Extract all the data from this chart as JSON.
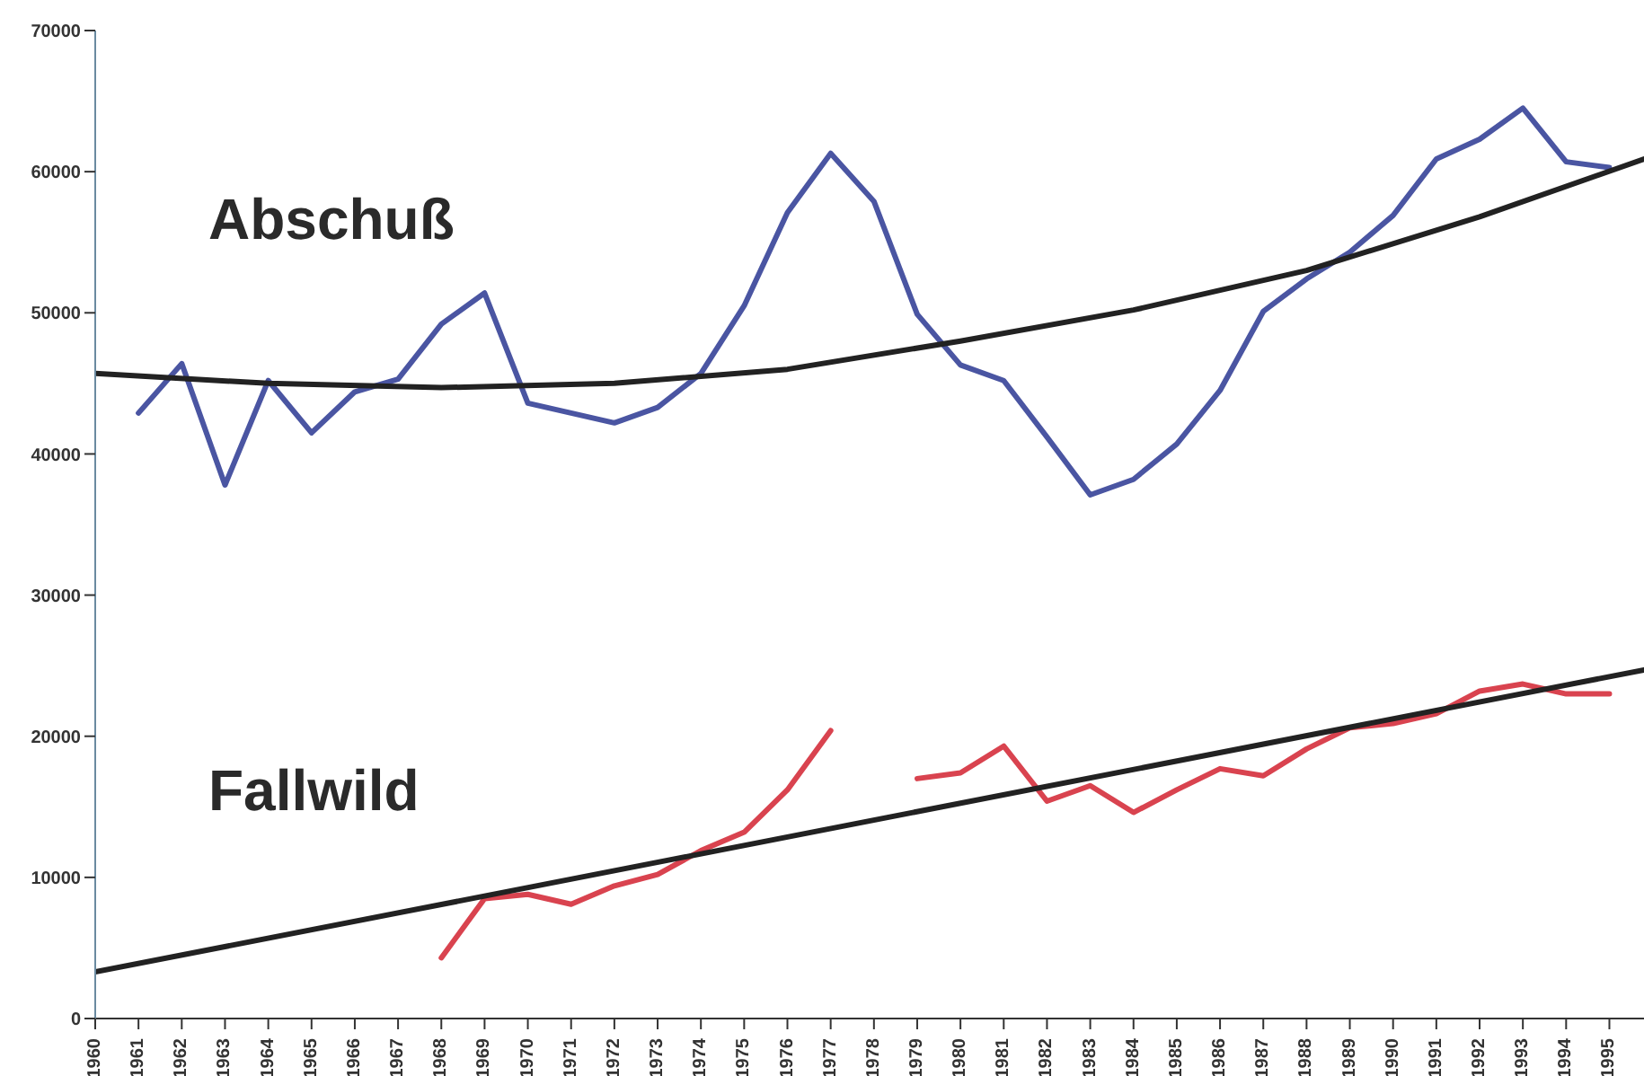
{
  "chart_data": {
    "type": "line",
    "x": [
      1961,
      1962,
      1963,
      1964,
      1965,
      1966,
      1967,
      1968,
      1969,
      1970,
      1971,
      1972,
      1973,
      1974,
      1975,
      1976,
      1977,
      1978,
      1979,
      1980,
      1981,
      1982,
      1983,
      1984,
      1985,
      1986,
      1987,
      1988,
      1989,
      1990,
      1991,
      1992,
      1993,
      1994,
      1995
    ],
    "series": [
      {
        "name": "Abschuß",
        "color": "#4a55a2",
        "values": [
          42900,
          46400,
          37800,
          45200,
          41500,
          44400,
          45300,
          49200,
          51400,
          43600,
          42900,
          42200,
          43300,
          45700,
          50500,
          57100,
          61300,
          57900,
          49900,
          46300,
          45200,
          41200,
          37100,
          38200,
          40700,
          44500,
          50100,
          52400,
          54300,
          56900,
          60900,
          62300,
          64500,
          60700,
          60300
        ]
      },
      {
        "name": "Fallwild",
        "color": "#d9434f",
        "values": [
          null,
          null,
          null,
          null,
          null,
          null,
          null,
          4300,
          8500,
          8800,
          8100,
          9400,
          10200,
          11900,
          13200,
          16200,
          20400,
          null,
          17000,
          17400,
          19300,
          15400,
          16500,
          14600,
          16200,
          17700,
          17200,
          19100,
          20600,
          20900,
          21600,
          23200,
          23700,
          23000,
          23000
        ]
      },
      {
        "type": "line",
        "color": "#222222",
        "x": [
          1960,
          1964,
          1968,
          1972,
          1976,
          1980,
          1984,
          1988,
          1992,
          1995.8
        ],
        "values": [
          45700,
          45000,
          44700,
          45000,
          46000,
          48000,
          50200,
          53000,
          56800,
          60900
        ]
      },
      {
        "type": "line",
        "color": "#222222",
        "x": [
          1960,
          1995.8
        ],
        "values": [
          3300,
          24700
        ]
      }
    ],
    "xlim": [
      1960,
      1995.8
    ],
    "xticks": [
      1960,
      1961,
      1962,
      1963,
      1964,
      1965,
      1966,
      1967,
      1968,
      1969,
      1970,
      1971,
      1972,
      1973,
      1974,
      1975,
      1976,
      1977,
      1978,
      1979,
      1980,
      1981,
      1982,
      1983,
      1984,
      1985,
      1986,
      1987,
      1988,
      1989,
      1990,
      1991,
      1992,
      1993,
      1994,
      1995
    ],
    "ylim": [
      0,
      70000
    ],
    "yticks": [
      0,
      10000,
      20000,
      30000,
      40000,
      50000,
      60000,
      70000
    ],
    "marker": "none",
    "line_style": "solid"
  }
}
